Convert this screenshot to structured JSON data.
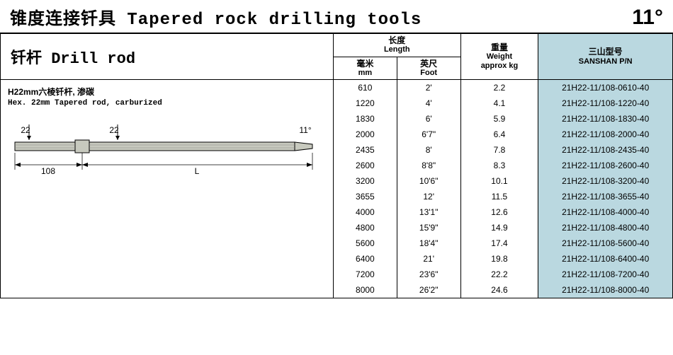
{
  "page_title_cn": "锥度连接钎具",
  "page_title_en": "Tapered rock drilling tools",
  "taper_angle": "11°",
  "section_title_cn": "钎杆",
  "section_title_en": "Drill rod",
  "columns": {
    "length_cn": "长度",
    "length_en": "Length",
    "mm_cn": "毫米",
    "mm_en": "mm",
    "foot_cn": "英尺",
    "foot_en": "Foot",
    "weight_cn": "重量",
    "weight_en": "Weight",
    "weight_unit": "approx kg",
    "pn_cn": "三山型号",
    "pn_en": "SANSHAN P/N"
  },
  "product": {
    "name_cn": "H22mm六棱钎杆, 渗碳",
    "name_en": "Hex. 22mm Tapered rod, carburized",
    "diagram": {
      "shank_label": "22",
      "body_label": "22",
      "tip_label": "11°",
      "shank_len": "108",
      "body_len": "L",
      "fill_color": "#c7c9be",
      "stroke_color": "#000"
    }
  },
  "rows": [
    {
      "mm": "610",
      "foot": "2'",
      "weight": "2.2",
      "pn": "21H22-11/108-0610-40"
    },
    {
      "mm": "1220",
      "foot": "4'",
      "weight": "4.1",
      "pn": "21H22-11/108-1220-40"
    },
    {
      "mm": "1830",
      "foot": "6'",
      "weight": "5.9",
      "pn": "21H22-11/108-1830-40"
    },
    {
      "mm": "2000",
      "foot": "6'7\"",
      "weight": "6.4",
      "pn": "21H22-11/108-2000-40"
    },
    {
      "mm": "2435",
      "foot": "8'",
      "weight": "7.8",
      "pn": "21H22-11/108-2435-40"
    },
    {
      "mm": "2600",
      "foot": "8'8\"",
      "weight": "8.3",
      "pn": "21H22-11/108-2600-40"
    },
    {
      "mm": "3200",
      "foot": "10'6\"",
      "weight": "10.1",
      "pn": "21H22-11/108-3200-40"
    },
    {
      "mm": "3655",
      "foot": "12'",
      "weight": "11.5",
      "pn": "21H22-11/108-3655-40"
    },
    {
      "mm": "4000",
      "foot": "13'1\"",
      "weight": "12.6",
      "pn": "21H22-11/108-4000-40"
    },
    {
      "mm": "4800",
      "foot": "15'9\"",
      "weight": "14.9",
      "pn": "21H22-11/108-4800-40"
    },
    {
      "mm": "5600",
      "foot": "18'4\"",
      "weight": "17.4",
      "pn": "21H22-11/108-5600-40"
    },
    {
      "mm": "6400",
      "foot": "21'",
      "weight": "19.8",
      "pn": "21H22-11/108-6400-40"
    },
    {
      "mm": "7200",
      "foot": "23'6\"",
      "weight": "22.2",
      "pn": "21H22-11/108-7200-40"
    },
    {
      "mm": "8000",
      "foot": "26'2\"",
      "weight": "24.6",
      "pn": "21H22-11/108-8000-40"
    }
  ],
  "styling": {
    "pn_bg_color": "#bad8e0",
    "border_color": "#000000",
    "page_bg": "#ffffff",
    "title_fontsize": 24,
    "header_fontsize": 12,
    "cell_fontsize": 12
  }
}
